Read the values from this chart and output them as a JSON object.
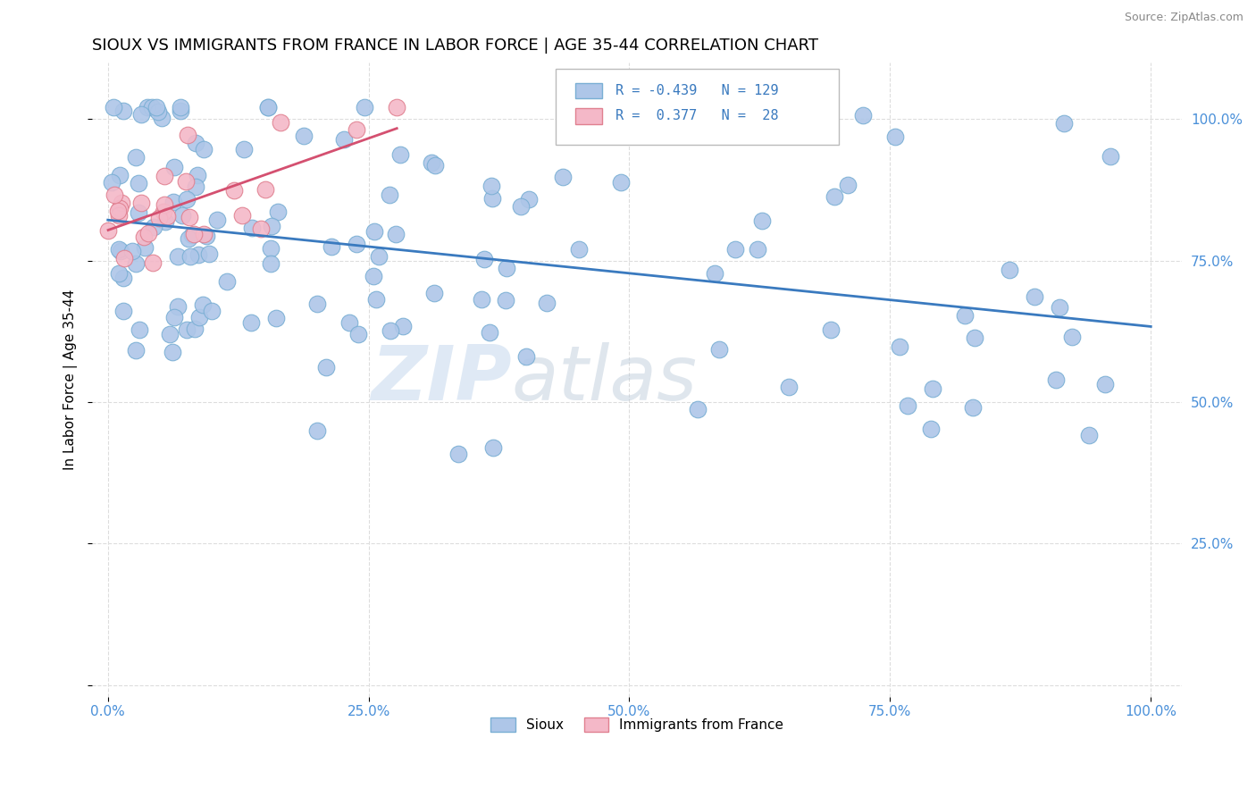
{
  "title": "SIOUX VS IMMIGRANTS FROM FRANCE IN LABOR FORCE | AGE 35-44 CORRELATION CHART",
  "source": "Source: ZipAtlas.com",
  "ylabel": "In Labor Force | Age 35-44",
  "watermark_zip": "ZIP",
  "watermark_atlas": "atlas",
  "sioux_color": "#aec6e8",
  "sioux_edge": "#7aafd4",
  "france_color": "#f4b8c8",
  "france_edge": "#e08090",
  "trend_sioux_color": "#3a7abf",
  "trend_france_color": "#d45070",
  "R_sioux": -0.439,
  "N_sioux": 129,
  "R_france": 0.377,
  "N_france": 28,
  "legend_label_sioux": "Sioux",
  "legend_label_france": "Immigrants from France",
  "background_color": "#ffffff",
  "grid_color": "#dddddd",
  "title_fontsize": 13,
  "axis_label_fontsize": 11,
  "tick_fontsize": 11,
  "legend_fontsize": 11,
  "tick_color_right": "#4a90d9",
  "tick_color_bottom": "#4a90d9"
}
